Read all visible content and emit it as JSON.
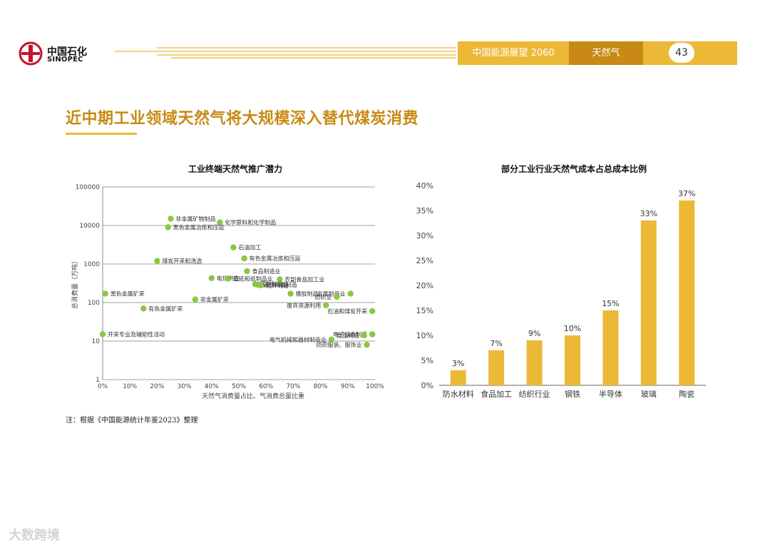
{
  "header": {
    "logo_cn": "中国石化",
    "logo_en": "SINOPEC",
    "report_name": "中国能源展望 2060",
    "section": "天然气",
    "page_number": "43",
    "accent_color": "#ecb936",
    "accent_dark": "#c88a14"
  },
  "page_title": "近中期工业领域天然气将大规模深入替代煤炭消费",
  "note": "注：根据《中国能源统计年鉴2023》整理",
  "watermark": "大数跨境",
  "chart_data": [
    {
      "type": "scatter",
      "title": "工业终端天然气推广潜力",
      "xlabel": "天然气消费量占比、气消费总量比重",
      "ylabel": "总消费量（万吨）",
      "yscale": "log",
      "xlim": [
        0,
        100
      ],
      "ylim": [
        1,
        100000
      ],
      "x_ticks": [
        "0%",
        "10%",
        "20%",
        "30%",
        "40%",
        "50%",
        "60%",
        "70%",
        "80%",
        "90%",
        "100%"
      ],
      "y_ticks": [
        "1",
        "10",
        "100",
        "1000",
        "10000",
        "100000"
      ],
      "marker_color": "#8cc63f",
      "points": [
        {
          "label": "非金属矿物制品",
          "x": 25,
          "y": 15000
        },
        {
          "label": "化学原料和化学制品",
          "x": 43,
          "y": 12000
        },
        {
          "label": "黑色金属冶炼和压延",
          "x": 24,
          "y": 9000
        },
        {
          "label": "石油加工",
          "x": 48,
          "y": 2700
        },
        {
          "label": "有色金属冶炼和压延",
          "x": 52,
          "y": 1400
        },
        {
          "label": "煤炭开采和洗选",
          "x": 20,
          "y": 1200
        },
        {
          "label": "食品制造业",
          "x": 53,
          "y": 650
        },
        {
          "label": "电热供应",
          "x": 40,
          "y": 430
        },
        {
          "label": "造纸和纸制品业",
          "x": 46,
          "y": 420
        },
        {
          "label": "农副食品加工业",
          "x": 65,
          "y": 400
        },
        {
          "label": "橡胶制品",
          "x": 69,
          "y": 170
        },
        {
          "label": "金属制品业",
          "x": 91,
          "y": 170
        },
        {
          "label": "医药制造业",
          "x": 56,
          "y": 300
        },
        {
          "label": "酒饮料茶制造",
          "x": 57,
          "y": 290
        },
        {
          "label": "化纤制造",
          "x": 58,
          "y": 280
        },
        {
          "label": "非金属矿采",
          "x": 34,
          "y": 120
        },
        {
          "label": "黑色金属矿采",
          "x": 1,
          "y": 170
        },
        {
          "label": "纺织业",
          "x": 86,
          "y": 140
        },
        {
          "label": "有色金属矿采",
          "x": 15,
          "y": 70
        },
        {
          "label": "废弃资源利用",
          "x": 82,
          "y": 85
        },
        {
          "label": "石油和煤炭开采",
          "x": 99,
          "y": 60
        },
        {
          "label": "电子设备制造",
          "x": 99,
          "y": 15
        },
        {
          "label": "食品制造",
          "x": 96,
          "y": 14
        },
        {
          "label": "电气机械和器材制造业",
          "x": 84,
          "y": 11
        },
        {
          "label": "纺织服装、服饰业",
          "x": 97,
          "y": 8
        },
        {
          "label": "开采专业及辅助性活动",
          "x": 0,
          "y": 15
        }
      ]
    },
    {
      "type": "bar",
      "title": "部分工业行业天然气成本占总成本比例",
      "categories": [
        "防水材料",
        "食品加工",
        "纺织行业",
        "钢铁",
        "半导体",
        "玻璃",
        "陶瓷"
      ],
      "values": [
        3,
        7,
        9,
        10,
        15,
        33,
        37
      ],
      "value_labels": [
        "3%",
        "7%",
        "9%",
        "10%",
        "15%",
        "33%",
        "37%"
      ],
      "y_ticks": [
        "0%",
        "5%",
        "10%",
        "15%",
        "20%",
        "25%",
        "30%",
        "35%",
        "40%"
      ],
      "ylim": [
        0,
        40
      ],
      "bar_color": "#ecb936"
    }
  ]
}
